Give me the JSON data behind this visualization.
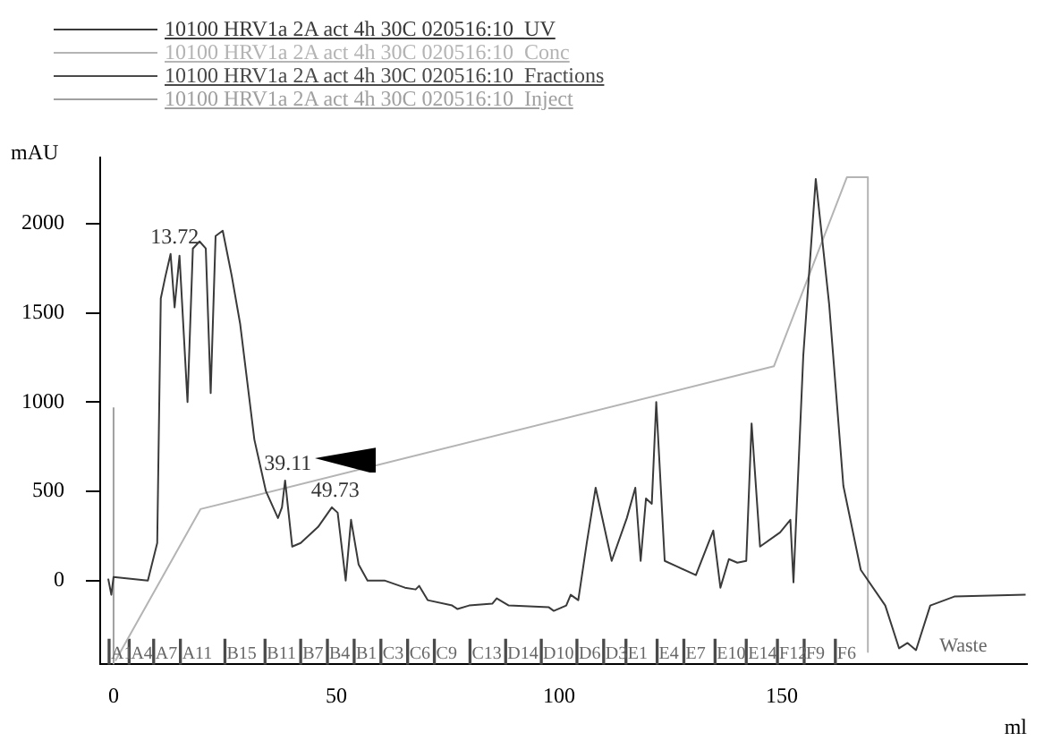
{
  "chart_data": {
    "type": "line",
    "xlabel": "ml",
    "ylabel": "mAU",
    "xlim": [
      -3,
      205
    ],
    "xticks": [
      0,
      50,
      100,
      150
    ],
    "ylim": [
      -470,
      2370
    ],
    "yticks": [
      0,
      500,
      1000,
      1500,
      2000
    ],
    "grid": false,
    "legend": "top left",
    "marker": "none",
    "line_style": "solid",
    "series": [
      {
        "name": "10100 HRV1a 2A act 4h 30C 020516:10_UV",
        "color": "#3a3a3a",
        "x": [
          -1.2,
          -0.5,
          0,
          7.7,
          9.8,
          10.6,
          11.6,
          12.8,
          13.7,
          14.8,
          16.6,
          17.8,
          19.3,
          20.7,
          21.8,
          22.9,
          24.5,
          26.5,
          28.4,
          31.6,
          34.2,
          36.9,
          37.8,
          38.5,
          40.1,
          42,
          45.9,
          49,
          50.3,
          52.1,
          53.3,
          55,
          57,
          60.8,
          65.4,
          67.8,
          68.6,
          70.5,
          76,
          77.2,
          79.8,
          85,
          86,
          88.7,
          97.7,
          98.8,
          101.6,
          102.6,
          104.3,
          106.2,
          108.2,
          111.8,
          115.2,
          117.1,
          118.3,
          119.5,
          120.8,
          121.8,
          123.7,
          126.3,
          130.7,
          134.6,
          136.2,
          138.1,
          140,
          142,
          143.2,
          145.1,
          149.6,
          151.9,
          152.6,
          154.8,
          157.6,
          160.6,
          163.8,
          167.7,
          173.2,
          176.3,
          178.2,
          180.1,
          183.3,
          188.7,
          204.7
        ],
        "values": [
          10,
          -80,
          20,
          0,
          210,
          1580,
          1700,
          1830,
          1530,
          1820,
          1000,
          1860,
          1900,
          1860,
          1050,
          1930,
          1960,
          1710,
          1440,
          790,
          500,
          350,
          410,
          560,
          190,
          210,
          300,
          410,
          380,
          0,
          340,
          90,
          0,
          0,
          -40,
          -50,
          -30,
          -110,
          -140,
          -160,
          -140,
          -130,
          -100,
          -140,
          -150,
          -170,
          -140,
          -80,
          -110,
          210,
          520,
          110,
          350,
          520,
          110,
          460,
          430,
          1000,
          110,
          80,
          30,
          280,
          -40,
          120,
          100,
          110,
          880,
          190,
          270,
          340,
          -10,
          1260,
          2250,
          1550,
          530,
          60,
          -140,
          -380,
          -350,
          -390,
          -140,
          -90,
          -80
        ]
      },
      {
        "name": "10100 HRV1a 2A act 4h 30C 020516:10_Conc",
        "color": "#b4b4b4",
        "x": [
          0.4,
          19.5,
          148.2,
          164.6,
          169.3,
          169.3
        ],
        "values": [
          -450,
          400,
          1200,
          2260,
          2260,
          -400
        ]
      },
      {
        "name": "10100 HRV1a 2A act 4h 30C 020516:10_Fractions",
        "color": "#4a4a4a",
        "type": "bar",
        "x": [
          -1,
          3.5,
          9,
          15,
          25,
          34,
          42,
          48,
          54,
          60,
          66,
          72,
          80,
          88,
          96,
          104,
          110,
          115,
          122,
          128,
          135,
          142,
          149,
          155,
          162
        ],
        "base": [
          -470,
          -470,
          -470,
          -470,
          -470,
          -470,
          -470,
          -470,
          -470,
          -470,
          -470,
          -470,
          -470,
          -470,
          -470,
          -470,
          -470,
          -470,
          -470,
          -470,
          -470,
          -470,
          -470,
          -470,
          -470
        ],
        "values": [
          140,
          140,
          140,
          140,
          140,
          140,
          140,
          140,
          140,
          140,
          140,
          140,
          140,
          140,
          140,
          140,
          140,
          140,
          140,
          140,
          140,
          140,
          140,
          140,
          140
        ],
        "value_labels": [
          "A1",
          "A4",
          "A7",
          "A11",
          "B15",
          "B11",
          "B7",
          "B4",
          "B1",
          "C3",
          "C6",
          "C9",
          "C13",
          "D14",
          "D10",
          "D6",
          "D3",
          "E1",
          "E4",
          "E7",
          "E10",
          "E14",
          "F12",
          "F9",
          "F6"
        ]
      },
      {
        "name": "10100 HRV1a 2A act 4h 30C 020516:10_Inject",
        "color": "#a0a0a0",
        "x": [
          0,
          0
        ],
        "values": [
          -470,
          970
        ]
      }
    ],
    "annotations": [
      {
        "text": "13.72",
        "x": 13.72,
        "y": 1830
      },
      {
        "text": "39.11",
        "x": 39.11,
        "y": 560
      },
      {
        "text": "49.73",
        "x": 49.73,
        "y": 410
      },
      "Waste"
    ]
  }
}
